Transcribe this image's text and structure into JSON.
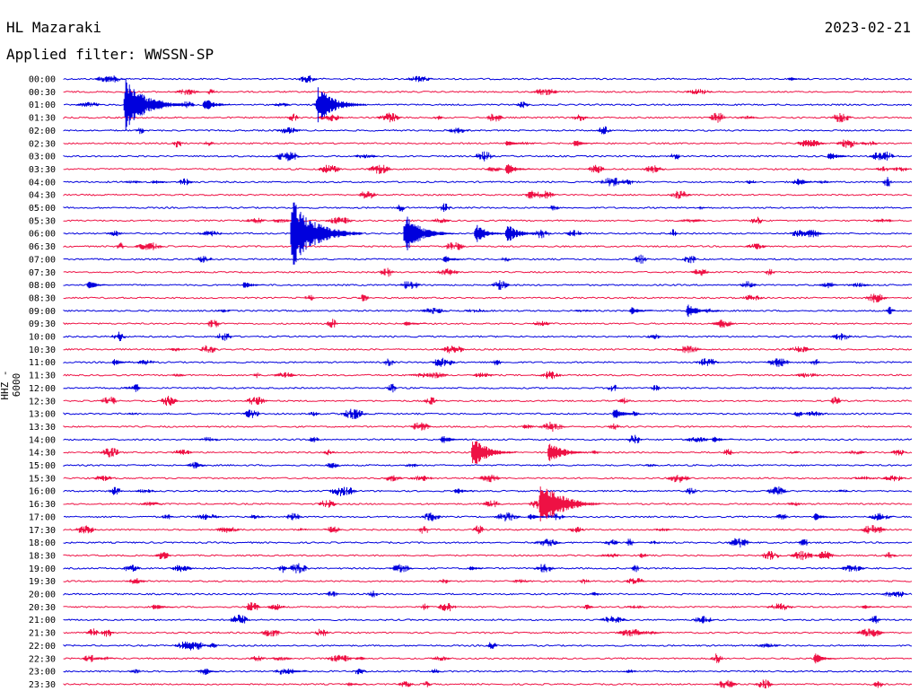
{
  "header": {
    "station": "HL Mazaraki",
    "date": "2023-02-21",
    "filter": "Applied filter: WWSSN-SP",
    "channel": "HHZ - 6000"
  },
  "colors": {
    "even": "#0000dd",
    "odd": "#ee1144"
  },
  "chart_data": {
    "type": "helicorder",
    "rows": [
      "00:00",
      "00:30",
      "01:00",
      "01:30",
      "02:00",
      "02:30",
      "03:00",
      "03:30",
      "04:00",
      "04:30",
      "05:00",
      "05:30",
      "06:00",
      "06:30",
      "07:00",
      "07:30",
      "08:00",
      "08:30",
      "09:00",
      "09:30",
      "10:00",
      "10:30",
      "11:00",
      "11:30",
      "12:00",
      "12:30",
      "13:00",
      "13:30",
      "14:00",
      "14:30",
      "15:00",
      "15:30",
      "16:00",
      "16:30",
      "17:00",
      "17:30",
      "18:00",
      "18:30",
      "19:00",
      "19:30",
      "20:00",
      "20:30",
      "21:00",
      "21:30",
      "22:00",
      "22:30",
      "23:00",
      "23:30"
    ],
    "x_range_minutes": [
      0,
      30
    ],
    "row_color_cycle": [
      "blue",
      "red"
    ],
    "events": [
      {
        "row": "01:00",
        "minute": 2.1,
        "amplitude": 4.0
      },
      {
        "row": "01:00",
        "minute": 4.9,
        "amplitude": 1.2
      },
      {
        "row": "01:00",
        "minute": 8.9,
        "amplitude": 3.0
      },
      {
        "row": "00:00",
        "minute": 25.6,
        "amplitude": 0.4
      },
      {
        "row": "02:30",
        "minute": 15.6,
        "amplitude": 0.6
      },
      {
        "row": "02:30",
        "minute": 18.0,
        "amplitude": 0.7
      },
      {
        "row": "03:00",
        "minute": 27.0,
        "amplitude": 0.8
      },
      {
        "row": "03:30",
        "minute": 15.6,
        "amplitude": 1.0
      },
      {
        "row": "04:00",
        "minute": 3.1,
        "amplitude": 0.5
      },
      {
        "row": "04:00",
        "minute": 26.0,
        "amplitude": 0.5
      },
      {
        "row": "06:00",
        "minute": 8.0,
        "amplitude": 5.0
      },
      {
        "row": "06:00",
        "minute": 12.0,
        "amplitude": 3.0
      },
      {
        "row": "06:00",
        "minute": 14.5,
        "amplitude": 1.6
      },
      {
        "row": "06:00",
        "minute": 15.6,
        "amplitude": 1.6
      },
      {
        "row": "07:00",
        "minute": 13.4,
        "amplitude": 0.7
      },
      {
        "row": "08:00",
        "minute": 0.8,
        "amplitude": 0.8
      },
      {
        "row": "08:00",
        "minute": 6.3,
        "amplitude": 0.7
      },
      {
        "row": "09:00",
        "minute": 20.0,
        "amplitude": 0.7
      },
      {
        "row": "09:00",
        "minute": 22.0,
        "amplitude": 1.2
      },
      {
        "row": "09:30",
        "minute": 12.0,
        "amplitude": 0.6
      },
      {
        "row": "11:00",
        "minute": 1.7,
        "amplitude": 0.6
      },
      {
        "row": "13:00",
        "minute": 19.4,
        "amplitude": 1.0
      },
      {
        "row": "14:00",
        "minute": 13.3,
        "amplitude": 0.8
      },
      {
        "row": "14:00",
        "minute": 22.9,
        "amplitude": 0.6
      },
      {
        "row": "14:30",
        "minute": 14.4,
        "amplitude": 2.5
      },
      {
        "row": "14:30",
        "minute": 17.1,
        "amplitude": 2.0
      },
      {
        "row": "16:00",
        "minute": 13.8,
        "amplitude": 0.6
      },
      {
        "row": "16:30",
        "minute": 16.8,
        "amplitude": 4.0
      },
      {
        "row": "17:00",
        "minute": 16.4,
        "amplitude": 0.7
      },
      {
        "row": "17:00",
        "minute": 26.5,
        "amplitude": 0.7
      },
      {
        "row": "19:00",
        "minute": 14.3,
        "amplitude": 0.5
      },
      {
        "row": "20:30",
        "minute": 3.1,
        "amplitude": 0.7
      },
      {
        "row": "20:30",
        "minute": 28.2,
        "amplitude": 0.5
      },
      {
        "row": "22:30",
        "minute": 26.5,
        "amplitude": 0.9
      },
      {
        "row": "23:00",
        "minute": 4.9,
        "amplitude": 0.4
      },
      {
        "row": "23:00",
        "minute": 8.0,
        "amplitude": 0.5
      },
      {
        "row": "23:30",
        "minute": 10.0,
        "amplitude": 0.4
      }
    ]
  }
}
